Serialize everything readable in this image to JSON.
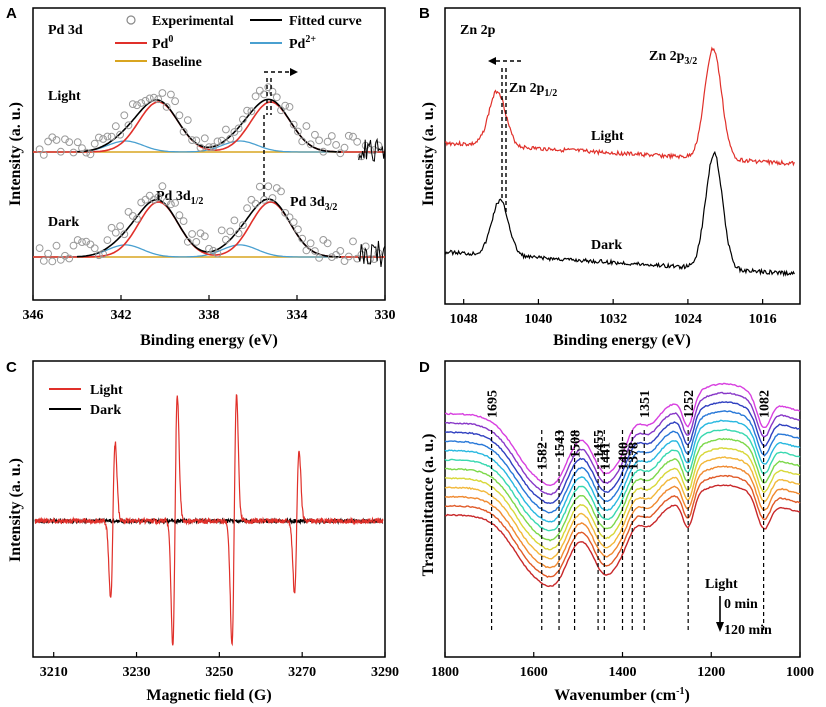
{
  "colors": {
    "experimental": "#9a9a9a",
    "fitted": "#000000",
    "pd0": "#e0302a",
    "pd2": "#4aa0d0",
    "baseline": "#d9a520",
    "light": "#e0302a",
    "dark": "#000000"
  },
  "chart_data": [
    {
      "panel": "A",
      "type": "scatter",
      "title": "Pd 3d",
      "xlabel": "Binding energy (eV)",
      "ylabel": "Intensity (a. u.)",
      "xlim": [
        346,
        330
      ],
      "xticks": [
        346,
        342,
        338,
        334,
        330
      ],
      "legend": [
        {
          "label": "Experimental",
          "marker": "circle"
        },
        {
          "label": "Fitted curve",
          "marker": "line"
        },
        {
          "label": "Pd",
          "sup": "0",
          "marker": "line"
        },
        {
          "label": "Pd",
          "sup": "2+",
          "marker": "line"
        },
        {
          "label": "Baseline",
          "marker": "line"
        }
      ],
      "series_labels": [
        "Light",
        "Dark"
      ],
      "annotations": [
        {
          "text": "Pd 3d",
          "sub": "1/2",
          "x": 340.3
        },
        {
          "text": "Pd 3d",
          "sub": "3/2",
          "x": 335.2
        }
      ],
      "peaks_eV": {
        "pd0": [
          340.3,
          335.2
        ],
        "pd2": [
          341.8,
          336.6
        ]
      }
    },
    {
      "panel": "B",
      "type": "line",
      "title": "Zn 2p",
      "xlabel": "Binding energy (eV)",
      "ylabel": "Intensity (a. u.)",
      "xlim": [
        1050,
        1012
      ],
      "xticks": [
        1048,
        1040,
        1032,
        1024,
        1016
      ],
      "series": [
        {
          "name": "Light",
          "peaks_eV": [
            1044.4,
            1021.3
          ]
        },
        {
          "name": "Dark",
          "peaks_eV": [
            1044.1,
            1021.2
          ]
        }
      ],
      "annotations": [
        {
          "text": "Zn 2p",
          "sub": "1/2"
        },
        {
          "text": "Zn 2p",
          "sub": "3/2"
        }
      ]
    },
    {
      "panel": "C",
      "type": "line",
      "xlabel": "Magnetic field (G)",
      "ylabel": "Intensity (a. u.)",
      "xlim": [
        3205,
        3290
      ],
      "xticks": [
        3210,
        3230,
        3250,
        3270,
        3290
      ],
      "legend": [
        "Light",
        "Dark"
      ],
      "signal_centers_G": [
        3224.3,
        3239.3,
        3253.6,
        3268.7
      ]
    },
    {
      "panel": "D",
      "type": "line",
      "xlabel": "Wavenumber (cm",
      "xlabel_sup": "-1",
      "xlabel_end": ")",
      "ylabel": "Transmittance (a. u.)",
      "xlim": [
        1800,
        1000
      ],
      "xticks": [
        1800,
        1600,
        1400,
        1200,
        1000
      ],
      "peak_labels": [
        "1695",
        "1582",
        "1543",
        "1508",
        "1455",
        "1441",
        "1400",
        "1378",
        "1351",
        "1252",
        "1082"
      ],
      "peak_positions": [
        1695,
        1582,
        1543,
        1508,
        1455,
        1441,
        1400,
        1378,
        1351,
        1252,
        1082
      ],
      "n_series": 12,
      "series_colors": [
        "#c8282a",
        "#e05a28",
        "#f08a30",
        "#f2b83a",
        "#d8d83a",
        "#7cd84a",
        "#38d8b0",
        "#28b8e0",
        "#2878d8",
        "#3040c0",
        "#8838c8",
        "#d840e0"
      ],
      "arrow_label": "Light",
      "time_start": "0 min",
      "time_end": "120 min"
    }
  ],
  "panel_letters": [
    "A",
    "B",
    "C",
    "D"
  ]
}
